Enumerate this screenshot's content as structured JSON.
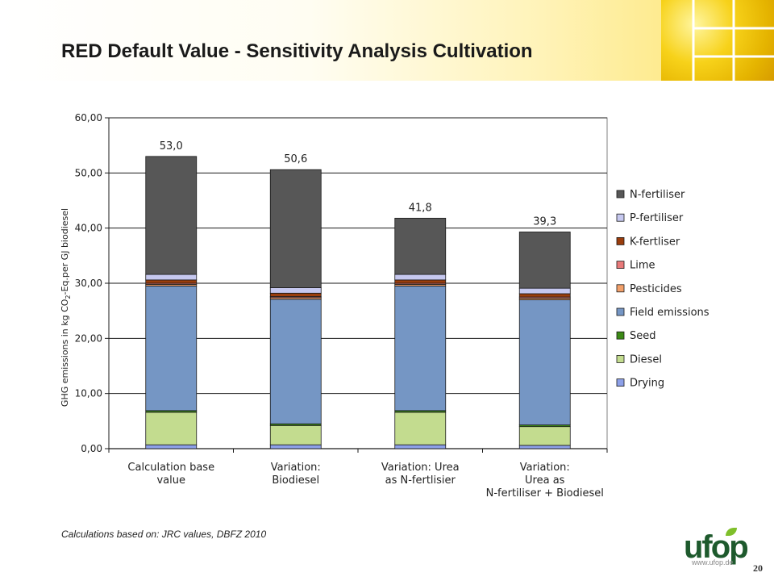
{
  "slide": {
    "title": "RED Default Value - Sensitivity Analysis Cultivation",
    "footnote": "Calculations based on: JRC values, DBFZ 2010",
    "logo_text": "ufop",
    "website": "www.ufop.de",
    "page_number": "20"
  },
  "chart_data": {
    "type": "bar",
    "stacked": true,
    "categories": [
      [
        "Calculation base",
        "value"
      ],
      [
        "Variation:",
        "Biodiesel"
      ],
      [
        "Variation: Urea",
        "as N-fertlisier"
      ],
      [
        "Variation:",
        "Urea as",
        "N-fertiliser + Biodiesel"
      ]
    ],
    "ylabel_prefix": "GHG emissions in kg CO",
    "ylabel_subscript": "2",
    "ylabel_suffix": "-Eq.per GJ biodiesel",
    "ylim": [
      0,
      60
    ],
    "yticks": [
      "0,00",
      "10,00",
      "20,00",
      "30,00",
      "40,00",
      "50,00",
      "60,00"
    ],
    "ytick_values": [
      0,
      10,
      20,
      30,
      40,
      50,
      60
    ],
    "gridlines": true,
    "legend_position": "right",
    "totals": [
      "53,0",
      "50,6",
      "41,8",
      "39,3"
    ],
    "series": [
      {
        "name": "Drying",
        "color": "#8da0e8",
        "values": [
          0.7,
          0.7,
          0.7,
          0.6
        ]
      },
      {
        "name": "Diesel",
        "color": "#c3dc8f",
        "values": [
          5.9,
          3.5,
          5.9,
          3.4
        ]
      },
      {
        "name": "Seed",
        "color": "#3c8a16",
        "values": [
          0.3,
          0.3,
          0.3,
          0.3
        ]
      },
      {
        "name": "Field emissions",
        "color": "#7596c4",
        "values": [
          22.6,
          22.6,
          22.6,
          22.7
        ]
      },
      {
        "name": "Pesticides",
        "color": "#f2a06a",
        "values": [
          0.3,
          0.3,
          0.3,
          0.3
        ]
      },
      {
        "name": "Lime",
        "color": "#e87a7a",
        "values": [
          0.2,
          0.2,
          0.2,
          0.2
        ]
      },
      {
        "name": "K-fertliser",
        "color": "#9a3d0c",
        "values": [
          0.6,
          0.6,
          0.6,
          0.6
        ]
      },
      {
        "name": "P-fertiliser",
        "color": "#c6c8ef",
        "values": [
          1.0,
          1.0,
          1.0,
          1.0
        ]
      },
      {
        "name": "N-fertiliser",
        "color": "#575757",
        "values": [
          21.4,
          21.4,
          10.2,
          10.2
        ]
      }
    ],
    "legend_order": [
      "N-fertiliser",
      "P-fertiliser",
      "K-fertliser",
      "Lime",
      "Pesticides",
      "Field emissions",
      "Seed",
      "Diesel",
      "Drying"
    ]
  }
}
